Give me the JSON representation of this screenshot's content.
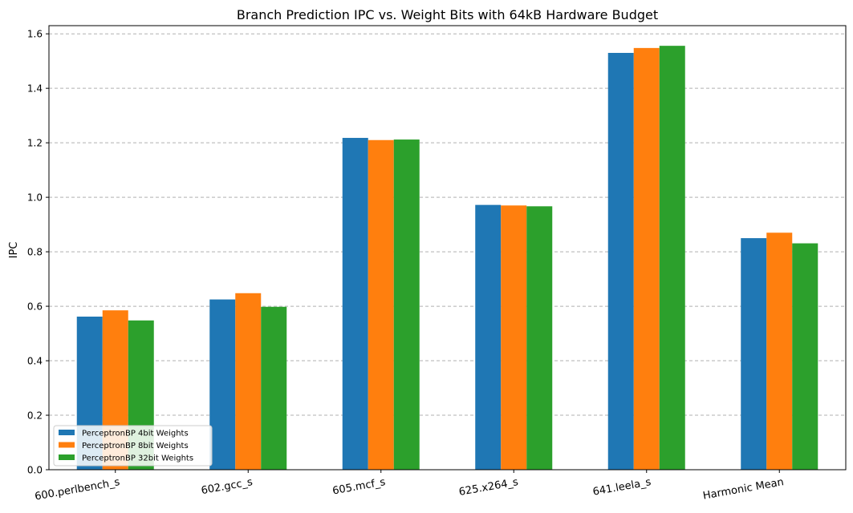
{
  "chart_data": {
    "type": "bar",
    "title": "Branch Prediction IPC vs. Weight Bits with 64kB Hardware Budget",
    "xlabel": "",
    "ylabel": "IPC",
    "ylim": [
      0,
      1.63
    ],
    "yticks": [
      "0.0",
      "0.2",
      "0.4",
      "0.6",
      "0.8",
      "1.0",
      "1.2",
      "1.4",
      "1.6"
    ],
    "grid": "y-dashed",
    "legend_position": "lower-left",
    "categories": [
      "600.perlbench_s",
      "602.gcc_s",
      "605.mcf_s",
      "625.x264_s",
      "641.leela_s",
      "Harmonic Mean"
    ],
    "series": [
      {
        "name": "PerceptronBP 4bit Weights",
        "color": "#1f77b4",
        "values": [
          0.562,
          0.625,
          1.218,
          0.972,
          1.53,
          0.85
        ]
      },
      {
        "name": "PerceptronBP 8bit Weights",
        "color": "#ff7f0e",
        "values": [
          0.585,
          0.648,
          1.21,
          0.97,
          1.548,
          0.87
        ]
      },
      {
        "name": "PerceptronBP 32bit Weights",
        "color": "#2ca02c",
        "values": [
          0.548,
          0.598,
          1.212,
          0.967,
          1.556,
          0.831
        ]
      }
    ]
  }
}
